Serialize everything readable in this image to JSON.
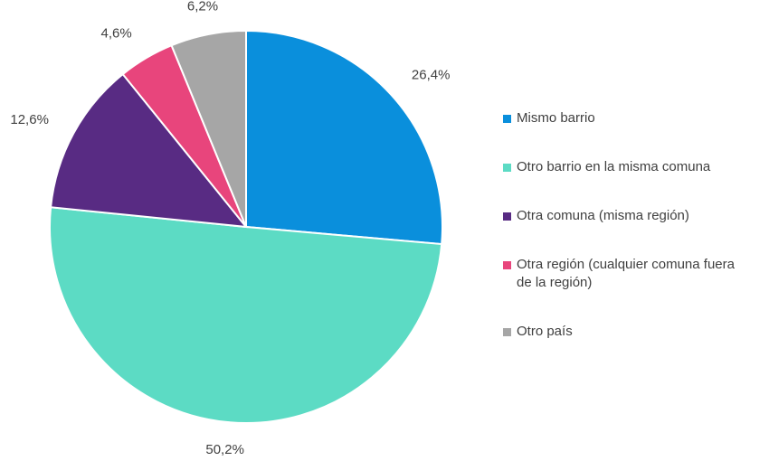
{
  "chart_data": {
    "type": "pie",
    "categories": [
      "Mismo barrio",
      "Otro barrio en la misma comuna",
      "Otra comuna (misma región)",
      "Otra región (cualquier comuna fuera de la región)",
      "Otro país"
    ],
    "values": [
      26.4,
      50.2,
      12.6,
      4.6,
      6.2
    ],
    "value_labels": [
      "26,4%",
      "50,2%",
      "12,6%",
      "4,6%",
      "6,2%"
    ],
    "colors": [
      "#0a8fdc",
      "#5cdbc4",
      "#582b83",
      "#e8457c",
      "#a6a6a6"
    ],
    "legend": "right"
  }
}
